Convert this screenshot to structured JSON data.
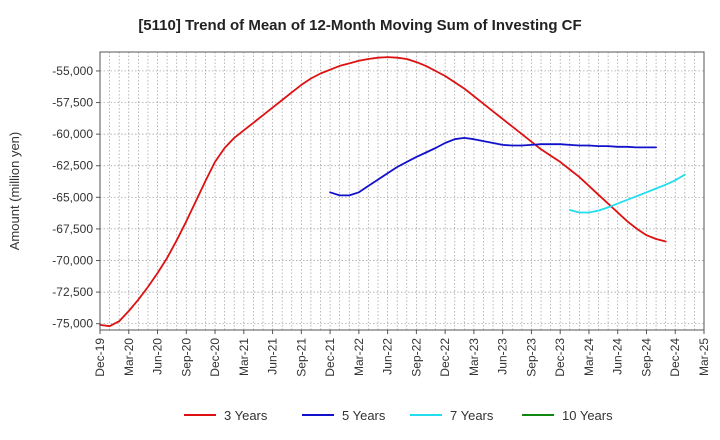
{
  "chart_data": {
    "type": "line",
    "title": "[5110]  Trend of Mean of 12-Month Moving Sum of Investing CF",
    "xlabel": "",
    "ylabel": "Amount (million yen)",
    "ylim": [
      -75500,
      -53500
    ],
    "yticks": [
      -55000,
      -57500,
      -60000,
      -62500,
      -65000,
      -67500,
      -70000,
      -72500,
      -75000
    ],
    "ytick_labels": [
      "-55,000",
      "-57,500",
      "-60,000",
      "-62,500",
      "-65,000",
      "-67,500",
      "-70,000",
      "-72,500",
      "-75,000"
    ],
    "xlim": [
      0,
      63
    ],
    "xticks": [
      0,
      3,
      6,
      9,
      12,
      15,
      18,
      21,
      24,
      27,
      30,
      33,
      36,
      39,
      42,
      45,
      48,
      51,
      54,
      57,
      60,
      63
    ],
    "xtick_labels": [
      "Dec-19",
      "Mar-20",
      "Jun-20",
      "Sep-20",
      "Dec-20",
      "Mar-21",
      "Jun-21",
      "Sep-21",
      "Dec-21",
      "Mar-22",
      "Jun-22",
      "Sep-22",
      "Dec-22",
      "Mar-23",
      "Jun-23",
      "Sep-23",
      "Dec-23",
      "Mar-24",
      "Jun-24",
      "Sep-24",
      "Dec-24",
      "Mar-25"
    ],
    "grid": true,
    "legend_position": "bottom",
    "series": [
      {
        "name": "3 Years",
        "color": "#dd1111",
        "points": [
          [
            0,
            -75100
          ],
          [
            1,
            -75200
          ],
          [
            2,
            -74800
          ],
          [
            3,
            -74000
          ],
          [
            4,
            -73100
          ],
          [
            5,
            -72100
          ],
          [
            6,
            -71000
          ],
          [
            7,
            -69800
          ],
          [
            8,
            -68400
          ],
          [
            9,
            -66900
          ],
          [
            10,
            -65300
          ],
          [
            11,
            -63700
          ],
          [
            12,
            -62200
          ],
          [
            13,
            -61100
          ],
          [
            14,
            -60300
          ],
          [
            15,
            -59700
          ],
          [
            16,
            -59100
          ],
          [
            17,
            -58500
          ],
          [
            18,
            -57900
          ],
          [
            19,
            -57300
          ],
          [
            20,
            -56700
          ],
          [
            21,
            -56100
          ],
          [
            22,
            -55600
          ],
          [
            23,
            -55200
          ],
          [
            24,
            -54900
          ],
          [
            25,
            -54600
          ],
          [
            26,
            -54400
          ],
          [
            27,
            -54200
          ],
          [
            28,
            -54050
          ],
          [
            29,
            -53950
          ],
          [
            30,
            -53900
          ],
          [
            31,
            -53950
          ],
          [
            32,
            -54050
          ],
          [
            33,
            -54300
          ],
          [
            34,
            -54600
          ],
          [
            35,
            -55000
          ],
          [
            36,
            -55400
          ],
          [
            37,
            -55900
          ],
          [
            38,
            -56400
          ],
          [
            39,
            -57000
          ],
          [
            40,
            -57600
          ],
          [
            41,
            -58200
          ],
          [
            42,
            -58800
          ],
          [
            43,
            -59400
          ],
          [
            44,
            -60000
          ],
          [
            45,
            -60600
          ],
          [
            46,
            -61200
          ],
          [
            47,
            -61700
          ],
          [
            48,
            -62200
          ],
          [
            49,
            -62800
          ],
          [
            50,
            -63400
          ],
          [
            51,
            -64100
          ],
          [
            52,
            -64800
          ],
          [
            53,
            -65500
          ],
          [
            54,
            -66200
          ],
          [
            55,
            -66900
          ],
          [
            56,
            -67500
          ],
          [
            57,
            -68000
          ],
          [
            58,
            -68300
          ],
          [
            59,
            -68500
          ]
        ]
      },
      {
        "name": "5 Years",
        "color": "#1111cc",
        "points": [
          [
            24,
            -64600
          ],
          [
            25,
            -64850
          ],
          [
            26,
            -64850
          ],
          [
            27,
            -64600
          ],
          [
            28,
            -64100
          ],
          [
            29,
            -63600
          ],
          [
            30,
            -63100
          ],
          [
            31,
            -62600
          ],
          [
            32,
            -62200
          ],
          [
            33,
            -61800
          ],
          [
            34,
            -61450
          ],
          [
            35,
            -61100
          ],
          [
            36,
            -60700
          ],
          [
            37,
            -60400
          ],
          [
            38,
            -60300
          ],
          [
            39,
            -60400
          ],
          [
            40,
            -60550
          ],
          [
            41,
            -60700
          ],
          [
            42,
            -60850
          ],
          [
            43,
            -60900
          ],
          [
            44,
            -60900
          ],
          [
            45,
            -60850
          ],
          [
            46,
            -60800
          ],
          [
            47,
            -60800
          ],
          [
            48,
            -60800
          ],
          [
            49,
            -60850
          ],
          [
            50,
            -60900
          ],
          [
            51,
            -60900
          ],
          [
            52,
            -60950
          ],
          [
            53,
            -60950
          ],
          [
            54,
            -61000
          ],
          [
            55,
            -61000
          ],
          [
            56,
            -61050
          ],
          [
            57,
            -61050
          ],
          [
            58,
            -61050
          ]
        ]
      },
      {
        "name": "7 Years",
        "color": "#22ddee",
        "points": [
          [
            49,
            -66000
          ],
          [
            50,
            -66200
          ],
          [
            51,
            -66200
          ],
          [
            52,
            -66050
          ],
          [
            53,
            -65800
          ],
          [
            54,
            -65500
          ],
          [
            55,
            -65200
          ],
          [
            56,
            -64900
          ],
          [
            57,
            -64600
          ],
          [
            58,
            -64300
          ],
          [
            59,
            -64000
          ],
          [
            60,
            -63650
          ],
          [
            61,
            -63200
          ]
        ]
      },
      {
        "name": "10 Years",
        "color": "#118811",
        "points": []
      }
    ]
  }
}
